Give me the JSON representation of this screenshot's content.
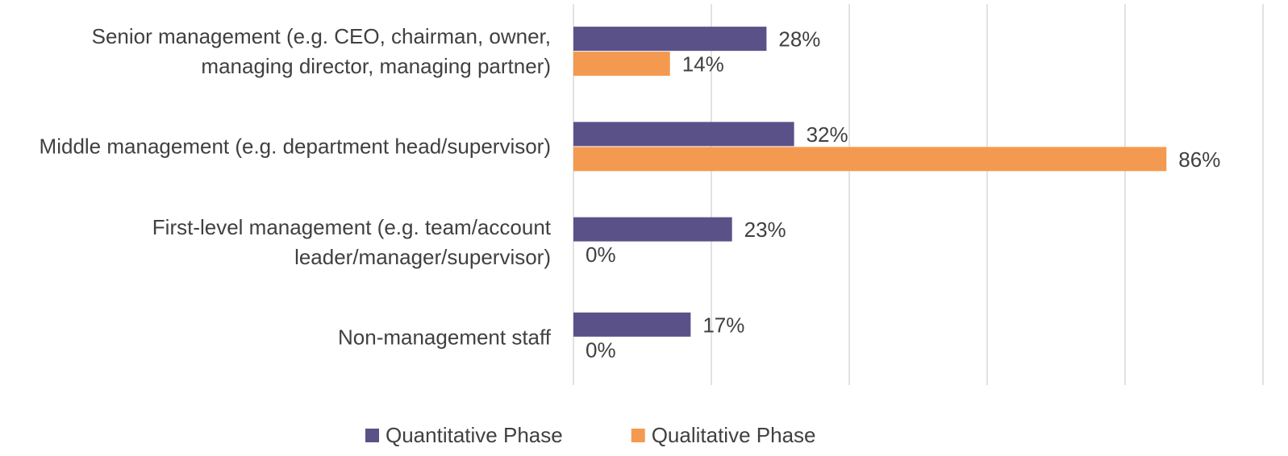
{
  "chart_data": {
    "type": "hbar",
    "categories": [
      "Senior management (e.g. CEO, chairman, owner, managing director, managing partner)",
      "Middle management (e.g. department head/supervisor)",
      "First-level management (e.g. team/account leader/manager/supervisor)",
      "Non-management staff"
    ],
    "series": [
      {
        "name": "Quantitative Phase",
        "color": "#5b5189",
        "values": [
          28,
          32,
          23,
          17
        ],
        "value_labels": [
          "28%",
          "32%",
          "23%",
          "17%"
        ]
      },
      {
        "name": "Qualitative Phase",
        "color": "#f39a50",
        "values": [
          14,
          86,
          0,
          0
        ],
        "value_labels": [
          "14%",
          "86%",
          "0%",
          "0%"
        ]
      }
    ],
    "xlim": [
      0,
      100
    ],
    "xticks": [
      0,
      20,
      40,
      60,
      80,
      100
    ],
    "grid": true,
    "legend": "bottom"
  }
}
